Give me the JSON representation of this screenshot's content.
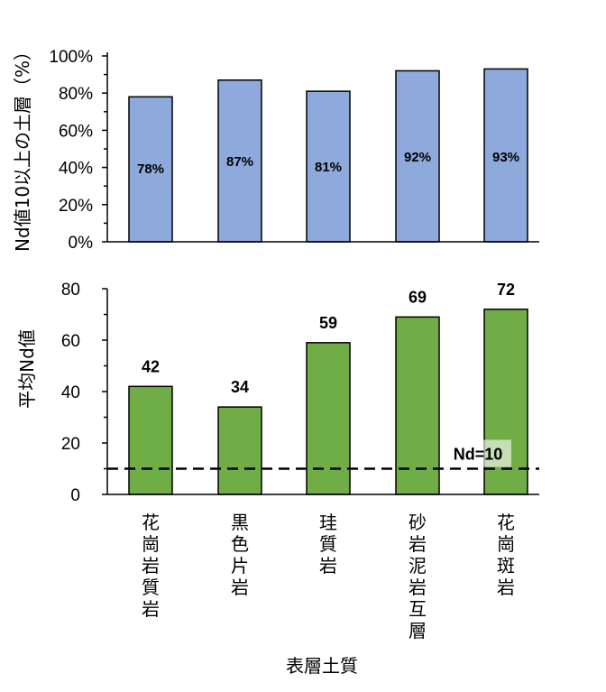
{
  "chart_data": [
    {
      "type": "bar",
      "ylabel": "Nd値10以上の土層（%）",
      "ylim": [
        0,
        100
      ],
      "yticks": [
        "0%",
        "20%",
        "40%",
        "60%",
        "80%",
        "100%"
      ],
      "categories": [
        "花崗岩質岩",
        "黒色片岩",
        "珪質岩",
        "砂岩泥岩互層",
        "花崗斑岩"
      ],
      "values": [
        78,
        87,
        81,
        92,
        93
      ],
      "data_labels": [
        "78%",
        "87%",
        "81%",
        "92%",
        "93%"
      ],
      "bar_color": "#8EA9DB"
    },
    {
      "type": "bar",
      "ylabel": "平均Nd値",
      "xlabel": "表層土質",
      "ylim": [
        0,
        80
      ],
      "yticks": [
        "0",
        "20",
        "40",
        "60",
        "80"
      ],
      "categories": [
        "花崗岩質岩",
        "黒色片岩",
        "珪質岩",
        "砂岩泥岩互層",
        "花崗斑岩"
      ],
      "values": [
        42,
        34,
        59,
        69,
        72
      ],
      "data_labels": [
        "42",
        "34",
        "59",
        "69",
        "72"
      ],
      "bar_color": "#70AD47",
      "reference_line": {
        "value": 10,
        "label": "Nd=10",
        "style": "dashed"
      }
    }
  ]
}
